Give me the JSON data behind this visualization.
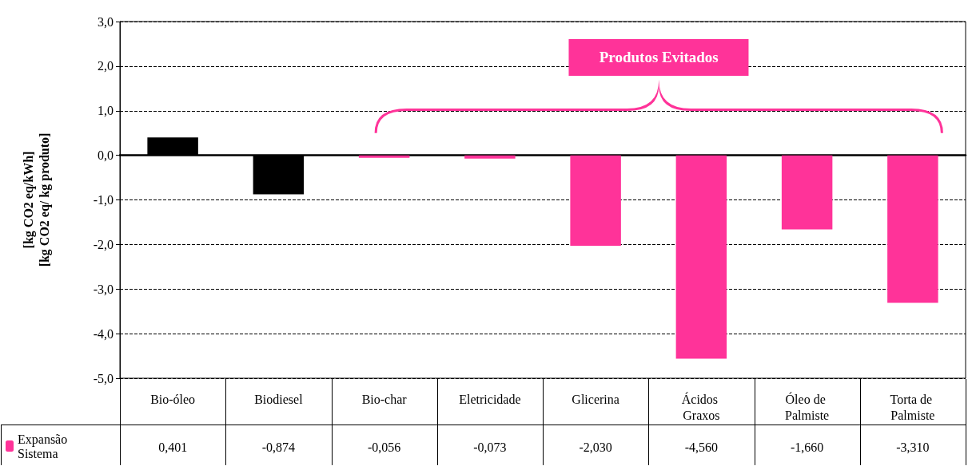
{
  "chart_data": {
    "type": "bar",
    "ylabel": "[kg CO2 eq/kWh]\n[kg CO2 eq/ kg produto]",
    "categories": [
      "Bio-óleo",
      "Biodiesel",
      "Bio-char",
      "Eletricidade",
      "Glicerina",
      "Ácidos Graxos",
      "Óleo de Palmiste",
      "Torta de Palmiste"
    ],
    "series": [
      {
        "name": "Expansão Sistema",
        "color": "#ff3399",
        "colors": [
          "#000000",
          "#000000",
          "#ff3399",
          "#ff3399",
          "#ff3399",
          "#ff3399",
          "#ff3399",
          "#ff3399"
        ],
        "values": [
          0.401,
          -0.874,
          -0.056,
          -0.073,
          -2.03,
          -4.56,
          -1.66,
          -3.31
        ]
      }
    ],
    "ylim": [
      -5,
      3
    ],
    "yticks": [
      {
        "value": -5,
        "label": "-5,0"
      },
      {
        "value": -4,
        "label": "-4,0"
      },
      {
        "value": -3,
        "label": "-3,0"
      },
      {
        "value": -2,
        "label": "-2,0"
      },
      {
        "value": -1,
        "label": "-1,0"
      },
      {
        "value": 0,
        "label": "0,0"
      },
      {
        "value": 1,
        "label": "1,0"
      },
      {
        "value": 2,
        "label": "2,0"
      },
      {
        "value": 3,
        "label": "3,0"
      }
    ],
    "value_labels": [
      "0,401",
      "-0,874",
      "-0,056",
      "-0,073",
      "-2,030",
      "-4,560",
      "-1,660",
      "-3,310"
    ],
    "grid": "y",
    "legend": "bottom left",
    "annotations": [
      "Produtos Evitados"
    ]
  }
}
